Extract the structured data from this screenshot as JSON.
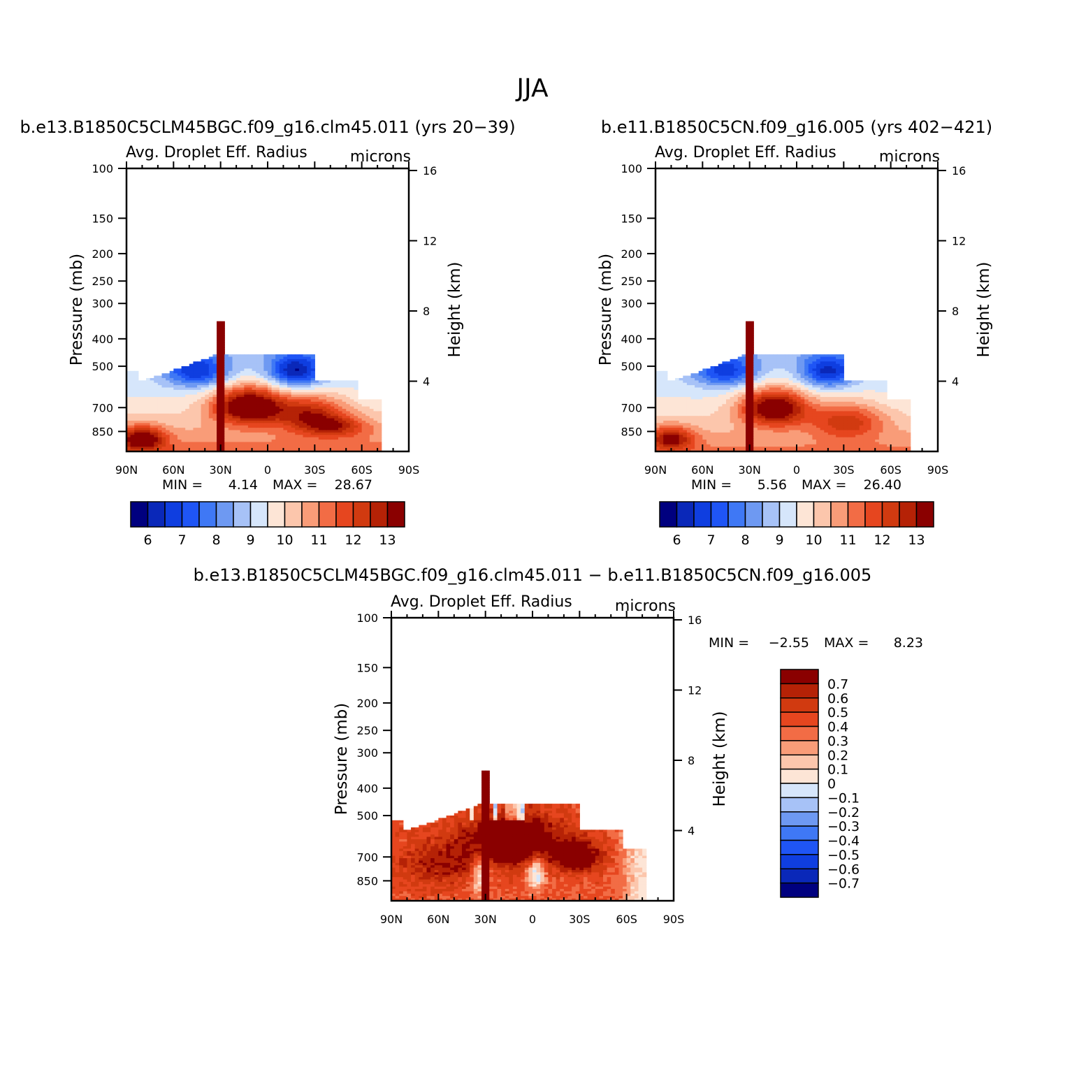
{
  "figure": {
    "title": "JJA",
    "diff_title": "b.e13.B1850C5CLM45BGC.f09_g16.clm45.011 − b.e11.B1850C5CN.f09_g16.005"
  },
  "chart_data": [
    {
      "type": "heatmap",
      "case_title": "b.e13.B1850C5CLM45BGC.f09_g16.clm45.011 (yrs 20−39)",
      "variable": "Avg. Droplet Eff. Radius",
      "units": "microns",
      "ylabel": "Pressure (mb)",
      "ylabel_right": "Height (km)",
      "x_ticks": [
        "90N",
        "60N",
        "30N",
        "0",
        "30S",
        "60S",
        "90S"
      ],
      "x_range": [
        90,
        -90
      ],
      "y_ticks": [
        100,
        150,
        200,
        250,
        300,
        400,
        500,
        700,
        850
      ],
      "y_range": [
        100,
        1000
      ],
      "y_scale": "log",
      "height_ticks": [
        4,
        8,
        12,
        16
      ],
      "min_label": "MIN =",
      "min": "4.14",
      "max_label": "MAX =",
      "max": "28.67",
      "colorbar_labels": [
        "6",
        "7",
        "8",
        "9",
        "10",
        "11",
        "12",
        "13"
      ],
      "field": "clm45"
    },
    {
      "type": "heatmap",
      "case_title": "b.e11.B1850C5CN.f09_g16.005 (yrs 402−421)",
      "variable": "Avg. Droplet Eff. Radius",
      "units": "microns",
      "ylabel": "Pressure (mb)",
      "ylabel_right": "Height (km)",
      "x_ticks": [
        "90N",
        "60N",
        "30N",
        "0",
        "30S",
        "60S",
        "90S"
      ],
      "x_range": [
        90,
        -90
      ],
      "y_ticks": [
        100,
        150,
        200,
        250,
        300,
        400,
        500,
        700,
        850
      ],
      "y_range": [
        100,
        1000
      ],
      "y_scale": "log",
      "height_ticks": [
        4,
        8,
        12,
        16
      ],
      "min_label": "MIN =",
      "min": "5.56",
      "max_label": "MAX =",
      "max": "26.40",
      "colorbar_labels": [
        "6",
        "7",
        "8",
        "9",
        "10",
        "11",
        "12",
        "13"
      ],
      "field": "cn"
    },
    {
      "type": "heatmap",
      "variable": "Avg. Droplet Eff. Radius",
      "units": "microns",
      "ylabel": "Pressure (mb)",
      "ylabel_right": "Height (km)",
      "x_ticks": [
        "90N",
        "60N",
        "30N",
        "0",
        "30S",
        "60S",
        "90S"
      ],
      "x_range": [
        90,
        -90
      ],
      "y_ticks": [
        100,
        150,
        200,
        250,
        300,
        400,
        500,
        700,
        850
      ],
      "y_range": [
        100,
        1000
      ],
      "y_scale": "log",
      "height_ticks": [
        4,
        8,
        12,
        16
      ],
      "min_label": "MIN =",
      "min": "−2.55",
      "max_label": "MAX =",
      "max": "8.23",
      "colorbar_labels": [
        "0.7",
        "0.6",
        "0.5",
        "0.4",
        "0.3",
        "0.2",
        "0.1",
        "0",
        "−0.1",
        "−0.2",
        "−0.3",
        "−0.4",
        "−0.5",
        "−0.6",
        "−0.7"
      ],
      "field": "diff"
    }
  ],
  "colormap": [
    "#00007f",
    "#0a28b9",
    "#0f3ee0",
    "#1f55f5",
    "#3f78f5",
    "#6e99f2",
    "#a7c2f7",
    "#d6e6fb",
    "#fde5d6",
    "#fcc6ac",
    "#f99c78",
    "#f26c45",
    "#e6461f",
    "#d13a10",
    "#b52206",
    "#8a0000"
  ]
}
